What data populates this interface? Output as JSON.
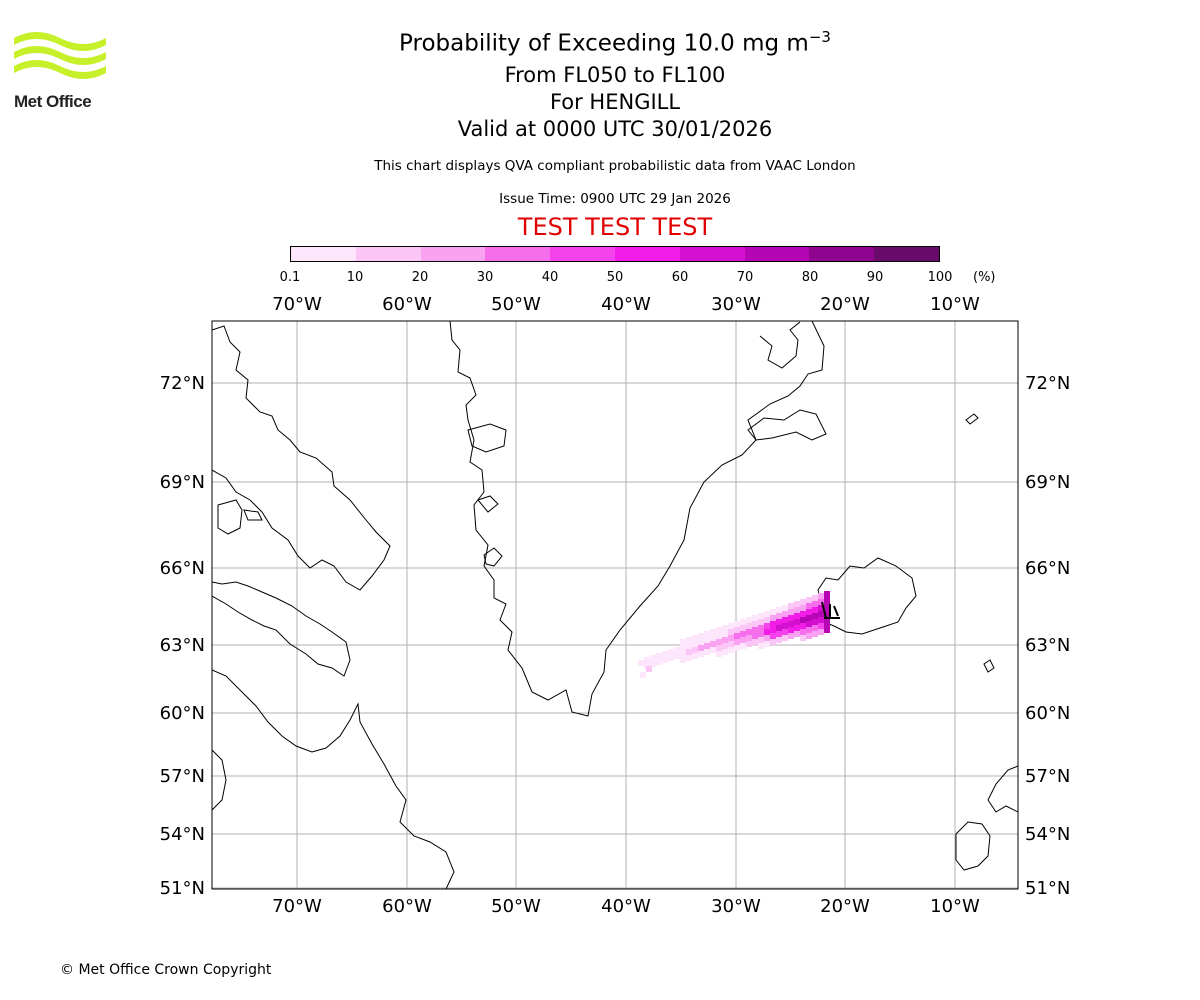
{
  "logo": {
    "name": "Met Office"
  },
  "header": {
    "title_main": "Probability of Exceeding 10.0 mg m",
    "title_exp": "−3",
    "levels": "From FL050 to FL100",
    "volcano": "For HENGILL",
    "valid": "Valid at 0000 UTC 30/01/2026",
    "description": "This chart displays QVA compliant probabilistic data from VAAC London",
    "issue_time": "Issue Time: 0900 UTC 29 Jan 2026",
    "test_banner": "TEST TEST TEST"
  },
  "colorbar": {
    "labels": [
      "0.1",
      "10",
      "20",
      "30",
      "40",
      "50",
      "60",
      "70",
      "80",
      "90",
      "100"
    ],
    "unit": "(%)",
    "colors": [
      "#fde6fb",
      "#fbc6f6",
      "#f8a2f1",
      "#f66eec",
      "#f443ea",
      "#f21ce8",
      "#d310d0",
      "#b605b4",
      "#8e048e",
      "#6a0a6a"
    ]
  },
  "map": {
    "lon_labels": [
      "70°W",
      "60°W",
      "50°W",
      "40°W",
      "30°W",
      "20°W",
      "10°W"
    ],
    "lat_labels": [
      "72°N",
      "69°N",
      "66°N",
      "63°N",
      "60°N",
      "57°N",
      "54°N",
      "51°N"
    ]
  },
  "footer": {
    "copyright": "© Met Office Crown Copyright"
  }
}
